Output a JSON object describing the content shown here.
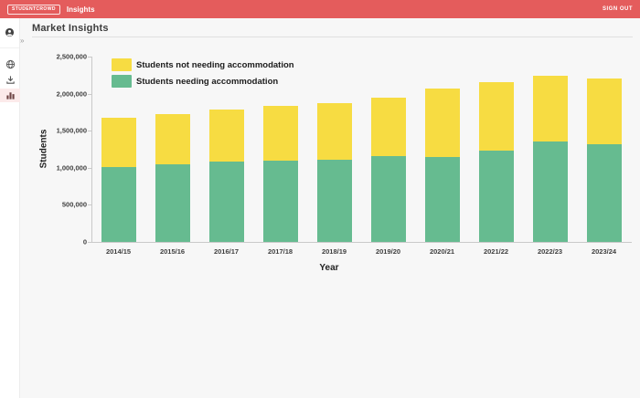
{
  "header": {
    "brand": "STUDENTCROWD",
    "app_name": "Insights",
    "sign_out_label": "SIGN OUT"
  },
  "sidebar": {
    "expand_chevron": "»",
    "icons": [
      "account-icon",
      "globe-icon",
      "download-icon",
      "bar-chart-icon"
    ],
    "active_item": "bar-chart-icon"
  },
  "page": {
    "title": "Market Insights"
  },
  "chart_data": {
    "type": "bar",
    "stacked": true,
    "title": "",
    "xlabel": "Year",
    "ylabel": "Students",
    "ylim": [
      0,
      2500000
    ],
    "y_ticks": [
      "0",
      "500,000",
      "1,000,000",
      "1,500,000",
      "2,000,000",
      "2,500,000"
    ],
    "grid": false,
    "legend_position": "top-left",
    "categories": [
      "2014/15",
      "2015/16",
      "2016/17",
      "2017/18",
      "2018/19",
      "2019/20",
      "2020/21",
      "2021/22",
      "2022/23",
      "2023/24"
    ],
    "series": [
      {
        "name": "Students not needing accommodation",
        "color": "#f7dc42",
        "stack_order": "top",
        "values": [
          670000,
          680000,
          700000,
          740000,
          760000,
          780000,
          930000,
          930000,
          890000,
          880000
        ]
      },
      {
        "name": "Students needing accommodation",
        "color": "#66bb90",
        "stack_order": "bottom",
        "values": [
          1010000,
          1050000,
          1080000,
          1090000,
          1110000,
          1160000,
          1140000,
          1230000,
          1350000,
          1320000
        ]
      }
    ],
    "totals": [
      1680000,
      1730000,
      1780000,
      1830000,
      1870000,
      1940000,
      2070000,
      2160000,
      2240000,
      2200000
    ]
  },
  "colors": {
    "header_bg": "#e45c5c",
    "active_sidebar_bg": "#fceaea",
    "axis": "#c9c9c9",
    "background": "#f7f7f7"
  }
}
